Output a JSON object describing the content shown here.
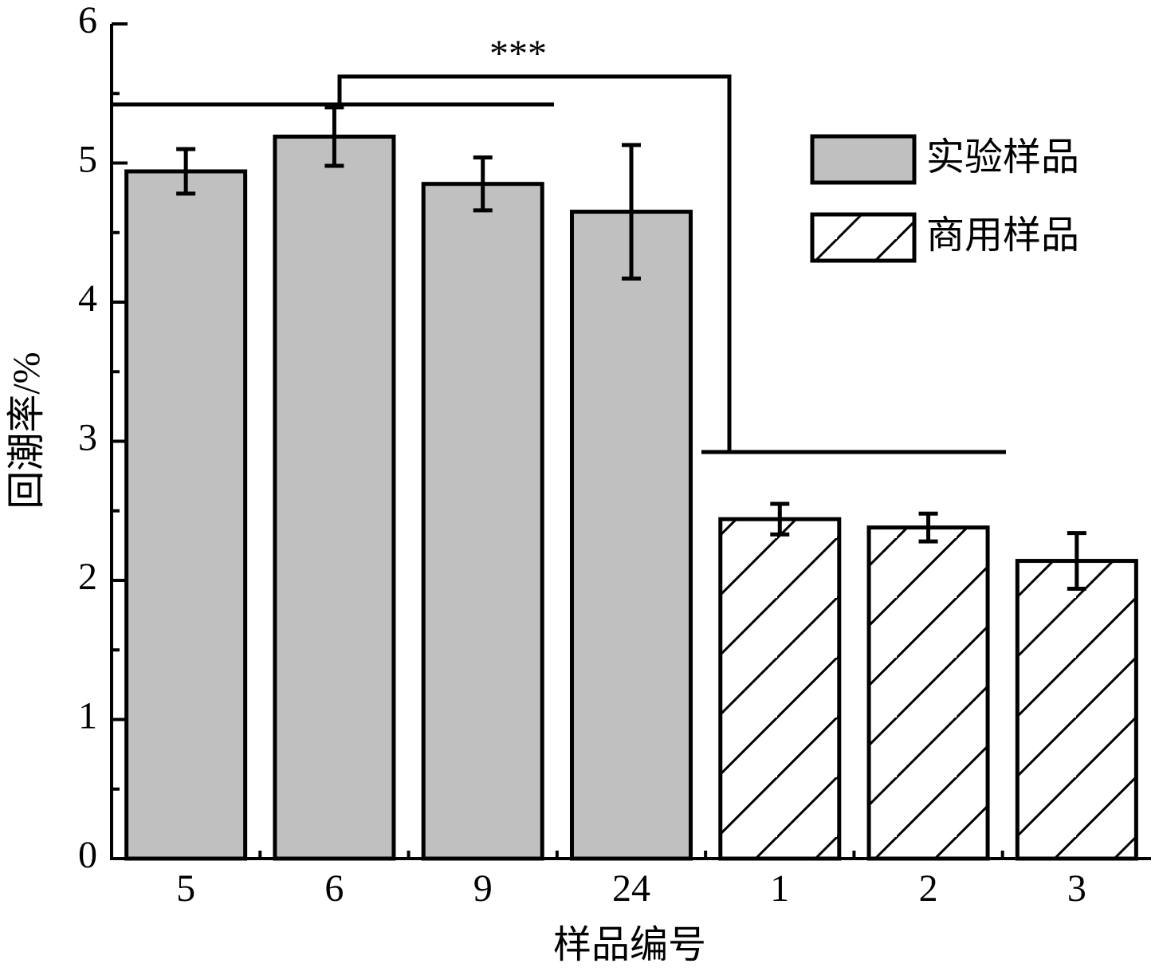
{
  "chart_data": {
    "type": "bar",
    "annotation": "***",
    "xlabel": "样品编号",
    "ylabel": "回潮率/%",
    "categories": [
      "5",
      "6",
      "9",
      "24",
      "1",
      "2",
      "3"
    ],
    "series": [
      {
        "name": "实验样品",
        "color": "#c0c0c0",
        "hatch": false,
        "values": [
          4.94,
          5.19,
          4.85,
          4.65,
          null,
          null,
          null
        ],
        "errors": [
          0.16,
          0.21,
          0.19,
          0.48,
          null,
          null,
          null
        ]
      },
      {
        "name": "商用样品",
        "color": "#ffffff",
        "hatch": true,
        "values": [
          null,
          null,
          null,
          null,
          2.44,
          2.38,
          2.14
        ],
        "errors": [
          null,
          null,
          null,
          null,
          0.11,
          0.1,
          0.2
        ]
      }
    ],
    "ylim": [
      0,
      6
    ],
    "yticks": [
      0,
      1,
      2,
      3,
      4,
      5,
      6
    ],
    "yminorticks": [
      0.5,
      1.5,
      2.5,
      3.5,
      4.5,
      5.5
    ],
    "legend": "upper right"
  }
}
